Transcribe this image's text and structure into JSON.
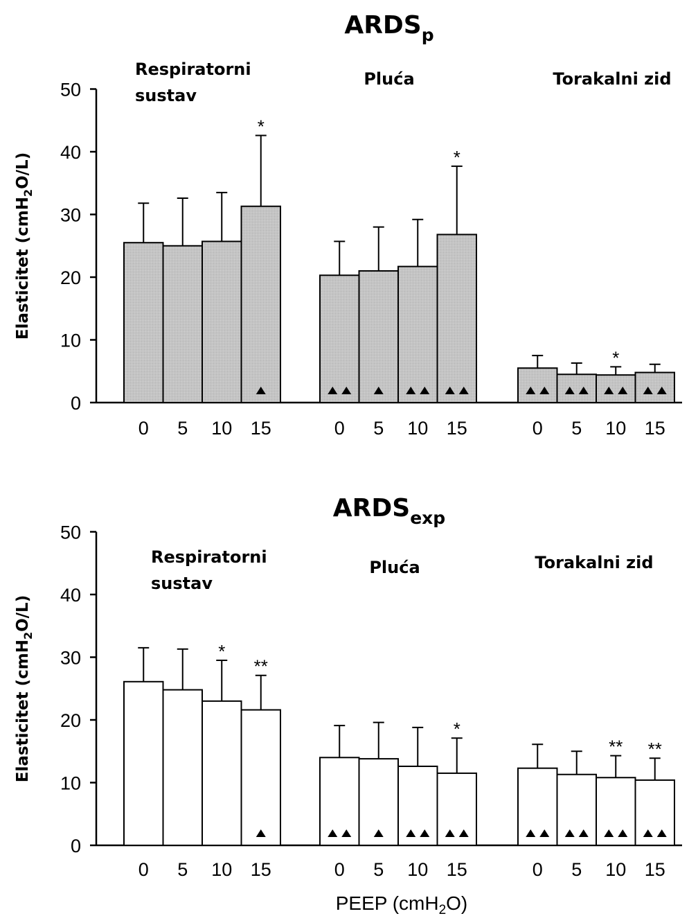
{
  "x_axis_label": {
    "main": "PEEP (cmH",
    "sub": "2",
    "end": "O)"
  },
  "chart_data": [
    {
      "type": "bar",
      "title": {
        "main": "ARDS",
        "sub": "p"
      },
      "ylabel": {
        "main": "Elasticitet (cmH",
        "sub": "2",
        "end": "O/L)"
      },
      "ylim": [
        0,
        50
      ],
      "yticks": [
        "0",
        "10",
        "20",
        "30",
        "40",
        "50"
      ],
      "bar_color": "#c4c4c4",
      "groups": [
        {
          "label_lines": [
            "Respiratorni",
            "sustav"
          ],
          "categories": [
            "0",
            "5",
            "10",
            "15"
          ],
          "values": [
            25.5,
            25.0,
            25.7,
            31.3
          ],
          "errors": [
            6.3,
            7.6,
            7.8,
            11.3
          ],
          "stars": [
            "",
            "",
            "",
            "*"
          ],
          "triangles": [
            0,
            0,
            0,
            1
          ]
        },
        {
          "label_lines": [
            "Pluća"
          ],
          "categories": [
            "0",
            "5",
            "10",
            "15"
          ],
          "values": [
            20.3,
            21.0,
            21.7,
            26.8
          ],
          "errors": [
            5.4,
            7.0,
            7.5,
            10.9
          ],
          "stars": [
            "",
            "",
            "",
            "*"
          ],
          "triangles": [
            2,
            1,
            2,
            2
          ]
        },
        {
          "label_lines": [
            "Torakalni zid"
          ],
          "categories": [
            "0",
            "5",
            "10",
            "15"
          ],
          "values": [
            5.5,
            4.5,
            4.4,
            4.8
          ],
          "errors": [
            2.0,
            1.8,
            1.3,
            1.3
          ],
          "stars": [
            "",
            "",
            "*",
            ""
          ],
          "triangles": [
            2,
            2,
            2,
            2
          ]
        }
      ]
    },
    {
      "type": "bar",
      "title": {
        "main": "ARDS",
        "sub": "exp"
      },
      "ylabel": {
        "main": "Elasticitet (cmH",
        "sub": "2",
        "end": "O/L)"
      },
      "ylim": [
        0,
        50
      ],
      "yticks": [
        "0",
        "10",
        "20",
        "30",
        "40",
        "50"
      ],
      "bar_color": "#ffffff",
      "groups": [
        {
          "label_lines": [
            "Respiratorni",
            "sustav"
          ],
          "categories": [
            "0",
            "5",
            "10",
            "15"
          ],
          "values": [
            26.1,
            24.8,
            23.0,
            21.6
          ],
          "errors": [
            5.4,
            6.5,
            6.5,
            5.5
          ],
          "stars": [
            "",
            "",
            "*",
            "**"
          ],
          "triangles": [
            0,
            0,
            0,
            1
          ]
        },
        {
          "label_lines": [
            "Pluća"
          ],
          "categories": [
            "0",
            "5",
            "10",
            "15"
          ],
          "values": [
            14.0,
            13.8,
            12.6,
            11.5
          ],
          "errors": [
            5.1,
            5.8,
            6.2,
            5.6
          ],
          "stars": [
            "",
            "",
            "",
            "*"
          ],
          "triangles": [
            2,
            1,
            2,
            2
          ]
        },
        {
          "label_lines": [
            "Torakalni zid"
          ],
          "categories": [
            "0",
            "5",
            "10",
            "15"
          ],
          "values": [
            12.3,
            11.3,
            10.8,
            10.4
          ],
          "errors": [
            3.8,
            3.7,
            3.5,
            3.5
          ],
          "stars": [
            "",
            "",
            "**",
            "**"
          ],
          "triangles": [
            2,
            2,
            2,
            2
          ]
        }
      ]
    }
  ]
}
